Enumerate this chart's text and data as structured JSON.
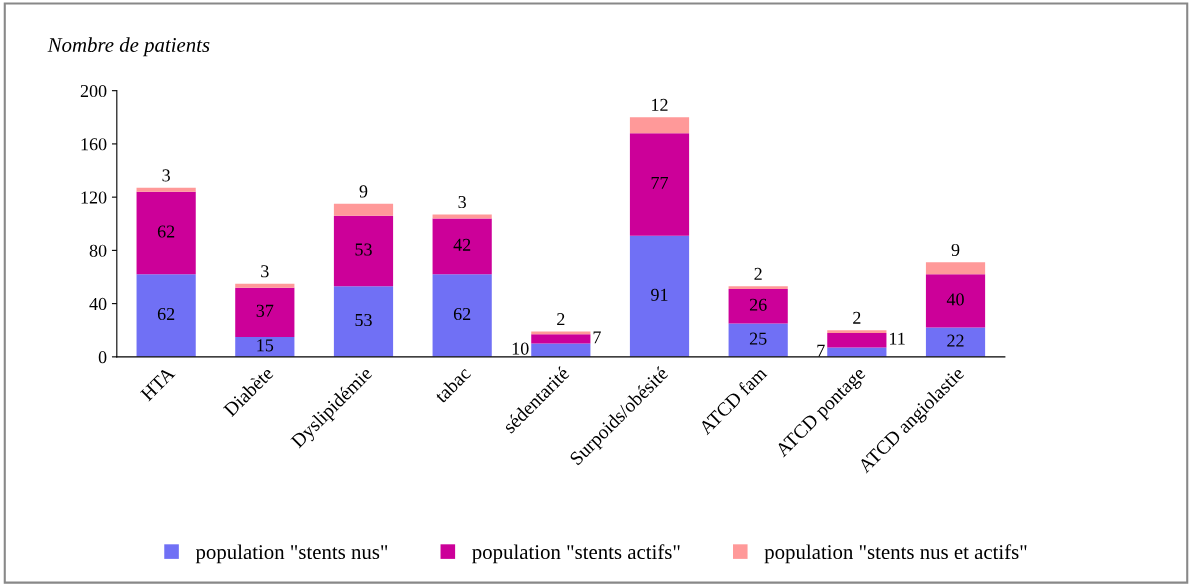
{
  "chart_data": {
    "type": "bar",
    "stacked": true,
    "ylabel": "Nombre de patients",
    "categories": [
      "HTA",
      "Diabète",
      "Dyslipidémie",
      "tabac",
      "sédentarité",
      "Surpoids/obésité",
      "ATCD fam",
      "ATCD pontage",
      "ATCD angiolastie"
    ],
    "series": [
      {
        "name": "population \"stents nus\"",
        "color": "#7070f5",
        "values": [
          62,
          15,
          53,
          62,
          10,
          91,
          25,
          7,
          22
        ]
      },
      {
        "name": "population \"stents actifs\"",
        "color": "#cc0099",
        "values": [
          62,
          37,
          53,
          42,
          7,
          77,
          26,
          11,
          40
        ]
      },
      {
        "name": "population \"stents nus et actifs\"",
        "color": "#ff9999",
        "values": [
          3,
          3,
          9,
          3,
          2,
          12,
          2,
          2,
          9
        ]
      }
    ],
    "ylim": [
      0,
      200
    ],
    "yticks": [
      0,
      40,
      80,
      120,
      160,
      200
    ],
    "grid": false,
    "data_labels": true,
    "legend": "bottom"
  }
}
